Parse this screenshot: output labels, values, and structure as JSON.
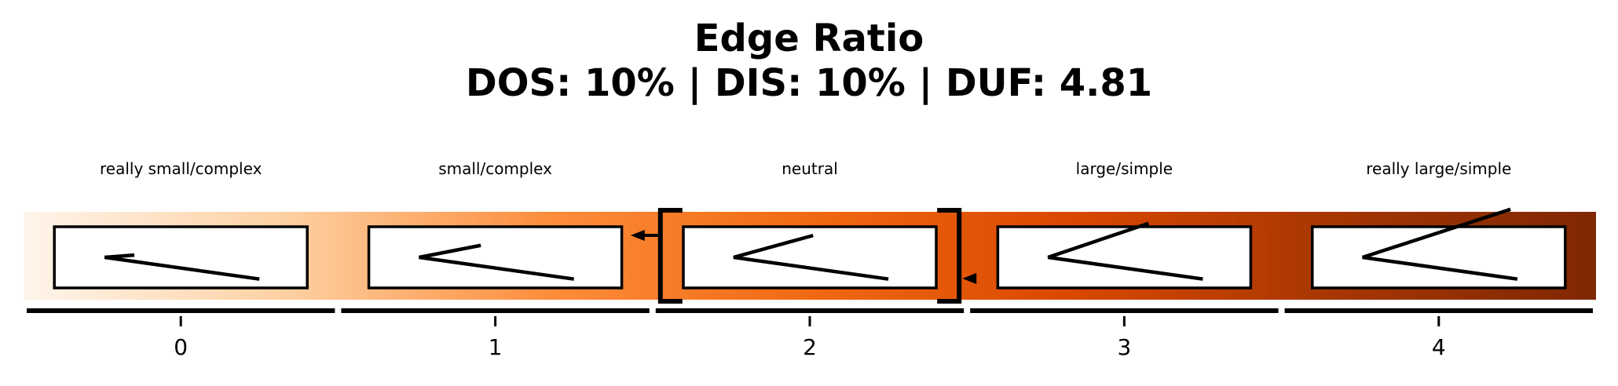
{
  "chart_data": {
    "type": "bar",
    "title": "Edge Ratio",
    "subtitle": "DOS: 10% | DIS: 10% | DUF: 4.81",
    "categories": [
      "0",
      "1",
      "2",
      "3",
      "4"
    ],
    "category_labels": [
      "really small/complex",
      "small/complex",
      "neutral",
      "large/simple",
      "really large/simple"
    ],
    "glyph_arm_angles_deg": [
      8,
      20,
      28,
      34,
      40
    ],
    "selected_category": 2,
    "xlim": [
      -0.5,
      4.5
    ],
    "grid": false,
    "legend": "none",
    "colormap": [
      "#fff5eb",
      "#fdd0a2",
      "#fd8d3c",
      "#f16913",
      "#d94801",
      "#a63603",
      "#7f2704"
    ]
  }
}
